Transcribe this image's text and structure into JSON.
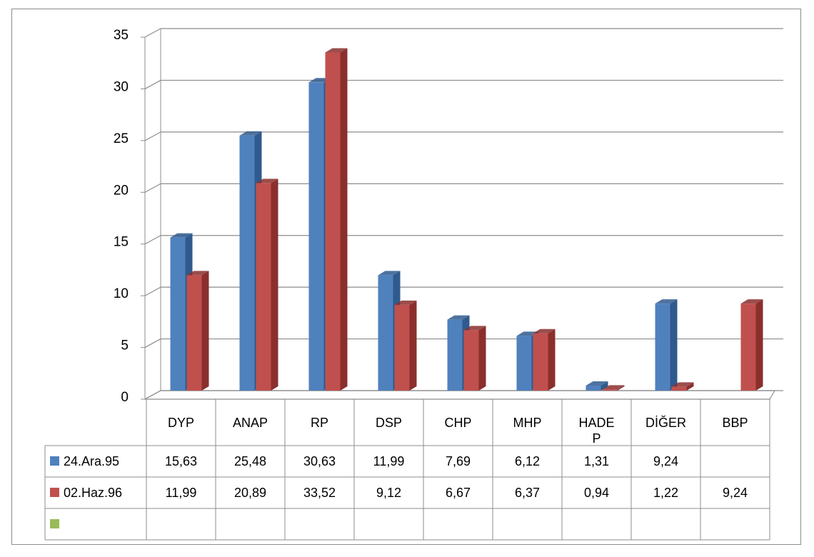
{
  "chart_data": {
    "type": "bar",
    "style": "3d-clustered-column-with-data-table",
    "title": "",
    "xlabel": "",
    "ylabel": "",
    "ylim": [
      0,
      35
    ],
    "y_ticks": [
      "0",
      "5",
      "10",
      "15",
      "20",
      "25",
      "30",
      "35"
    ],
    "grid": true,
    "legend": "data-table",
    "categories": [
      "DYP",
      "ANAP",
      "RP",
      "DSP",
      "CHP",
      "MHP",
      "HADEP",
      "DİĞER",
      "BBP"
    ],
    "category_display": [
      [
        "DYP"
      ],
      [
        "ANAP"
      ],
      [
        "RP"
      ],
      [
        "DSP"
      ],
      [
        "CHP"
      ],
      [
        "MHP"
      ],
      [
        "HADE",
        "P"
      ],
      [
        "DİĞER"
      ],
      [
        "BBP"
      ]
    ],
    "series": [
      {
        "name": "24.Ara.95",
        "color": "#4f81bd",
        "side_color": "#2f5a8e",
        "values": [
          15.63,
          25.48,
          30.63,
          11.99,
          7.69,
          6.12,
          1.31,
          9.24,
          null
        ],
        "labels": [
          "15,63",
          "25,48",
          "30,63",
          "11,99",
          "7,69",
          "6,12",
          "1,31",
          "9,24",
          ""
        ]
      },
      {
        "name": "02.Haz.96",
        "color": "#c0504d",
        "side_color": "#8a2f2d",
        "values": [
          11.99,
          20.89,
          33.52,
          9.12,
          6.67,
          6.37,
          0.94,
          1.22,
          9.24
        ],
        "labels": [
          "11,99",
          "20,89",
          "33,52",
          "9,12",
          "6,67",
          "6,37",
          "0,94",
          "1,22",
          "9,24"
        ]
      },
      {
        "name": "",
        "color": "#9bbb59",
        "values": [
          null,
          null,
          null,
          null,
          null,
          null,
          null,
          null,
          null
        ],
        "labels": [
          "",
          "",
          "",
          "",
          "",
          "",
          "",
          "",
          ""
        ]
      }
    ]
  }
}
